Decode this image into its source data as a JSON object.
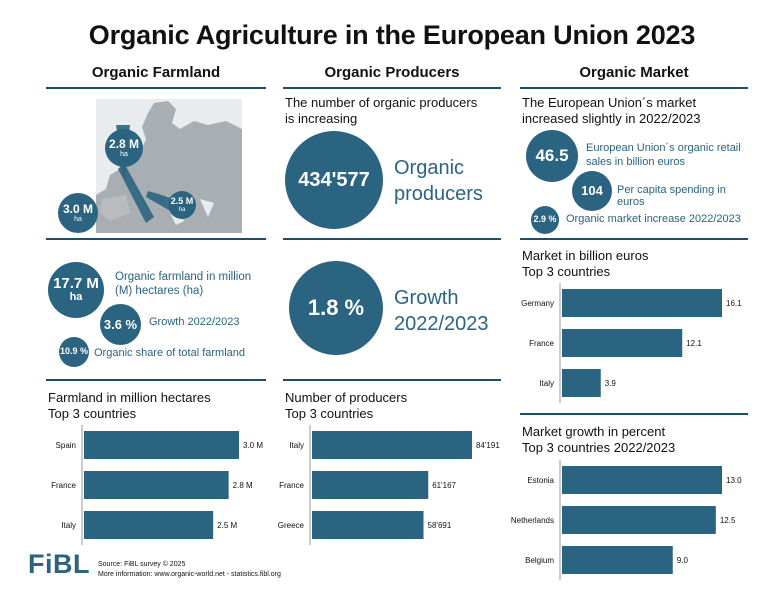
{
  "title": "Organic Agriculture in the European Union 2023",
  "columns": {
    "farmland": "Organic Farmland",
    "producers": "Organic Producers",
    "market": "Organic Market"
  },
  "farmland": {
    "map_bubbles": [
      {
        "value": "2.8 M",
        "unit": "ha"
      },
      {
        "value": "3.0 M",
        "unit": "ha"
      },
      {
        "value": "2.5 M",
        "unit": "ha"
      }
    ],
    "stats": [
      {
        "value": "17.7 M",
        "unit": "ha",
        "label": "Organic farmland in million (M) hectares (ha)"
      },
      {
        "value": "3.6 %",
        "label": "Growth 2022/2023"
      },
      {
        "value": "10.9 %",
        "label": "Organic share of total farmland"
      }
    ],
    "chart_heading": [
      "Farmland in million hectares",
      "Top 3 countries"
    ]
  },
  "producers": {
    "intro": [
      "The number of organic producers",
      "is increasing"
    ],
    "count": "434'577",
    "count_label": [
      "Organic",
      "producers"
    ],
    "growth": "1.8 %",
    "growth_label": [
      "Growth",
      "2022/2023"
    ],
    "chart_heading": [
      "Number of producers",
      "Top 3 countries"
    ]
  },
  "market": {
    "intro": [
      "The European Union´s market",
      "increased slightly in 2022/2023"
    ],
    "stats": [
      {
        "value": "46.5",
        "label": "European Union´s organic retail sales in billion euros"
      },
      {
        "value": "104",
        "label": "Per capita spending in euros"
      },
      {
        "value": "2.9 %",
        "label": "Organic market increase 2022/2023"
      }
    ],
    "chart1_heading": [
      "Market in billion euros",
      "Top 3 countries"
    ],
    "chart2_heading": [
      "Market growth in percent",
      "Top 3 countries 2022/2023"
    ]
  },
  "footer": {
    "logo": "FiBL",
    "source": "Source: FiBL survey © 2025",
    "more": "More information: www.organic-world.net - statistics.fibl.org"
  },
  "colors": {
    "accent": "#2b6480",
    "rule": "#1f4e6b"
  },
  "chart_data": [
    {
      "type": "bar",
      "orientation": "horizontal",
      "categories": [
        "Spain",
        "France",
        "Italy"
      ],
      "values": [
        3.0,
        2.8,
        2.5
      ],
      "labels": [
        "3.0 M",
        "2.8 M",
        "2.5 M"
      ]
    },
    {
      "type": "bar",
      "orientation": "horizontal",
      "categories": [
        "Italy",
        "France",
        "Greece"
      ],
      "values": [
        84191,
        61167,
        58691
      ],
      "labels": [
        "84'191",
        "61'167",
        "58'691"
      ]
    },
    {
      "type": "bar",
      "orientation": "horizontal",
      "categories": [
        "Germany",
        "France",
        "Italy"
      ],
      "values": [
        16.1,
        12.1,
        3.9
      ],
      "labels": [
        "16.1",
        "12.1",
        "3.9"
      ]
    },
    {
      "type": "bar",
      "orientation": "horizontal",
      "categories": [
        "Estonia",
        "Netherlands",
        "Belgium"
      ],
      "values": [
        13.0,
        12.5,
        9.0
      ],
      "labels": [
        "13.0",
        "12.5",
        "9.0"
      ]
    }
  ]
}
